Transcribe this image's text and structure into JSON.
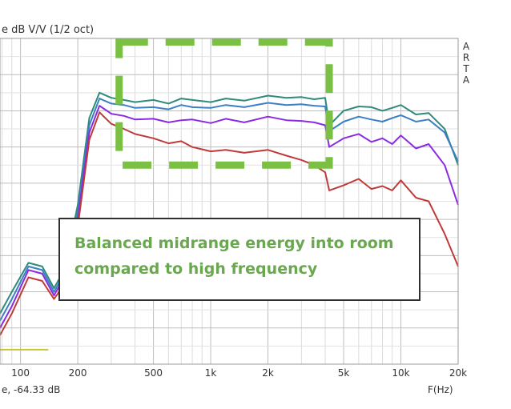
{
  "chart_data": {
    "type": "line",
    "title": "",
    "ylabel_fragment": "e dB V/V (1/2 oct)",
    "xlabel": "F(Hz)",
    "readout": "e, -64.33 dB",
    "watermark_letters": [
      "A",
      "R",
      "T",
      "A"
    ],
    "x_scale": "log",
    "xlim": [
      78,
      20000
    ],
    "x_ticks": [
      {
        "value": 100,
        "label": "100"
      },
      {
        "value": 200,
        "label": "200"
      },
      {
        "value": 500,
        "label": "500"
      },
      {
        "value": 1000,
        "label": "1k"
      },
      {
        "value": 2000,
        "label": "2k"
      },
      {
        "value": 5000,
        "label": "5k"
      },
      {
        "value": 10000,
        "label": "10k"
      },
      {
        "value": 20000,
        "label": "20k"
      }
    ],
    "ylim": [
      -45,
      0
    ],
    "y_major_step": 5,
    "grid": true,
    "colors": {
      "teal": "#2e8b7a",
      "blue": "#3b7fc4",
      "purple": "#8a2be2",
      "red": "#c03a3a",
      "annotation": "#6aa84f",
      "highlight": "#7ac143"
    },
    "series": [
      {
        "color": "teal",
        "points": [
          [
            78,
            -38
          ],
          [
            90,
            -35
          ],
          [
            110,
            -31
          ],
          [
            130,
            -31.5
          ],
          [
            150,
            -34.5
          ],
          [
            170,
            -32
          ],
          [
            200,
            -23
          ],
          [
            230,
            -11
          ],
          [
            260,
            -7.5
          ],
          [
            300,
            -8.2
          ],
          [
            350,
            -8.5
          ],
          [
            400,
            -8.8
          ],
          [
            500,
            -8.5
          ],
          [
            600,
            -9
          ],
          [
            700,
            -8.3
          ],
          [
            800,
            -8.5
          ],
          [
            1000,
            -8.8
          ],
          [
            1200,
            -8.3
          ],
          [
            1500,
            -8.6
          ],
          [
            2000,
            -7.9
          ],
          [
            2500,
            -8.2
          ],
          [
            3000,
            -8.1
          ],
          [
            3500,
            -8.4
          ],
          [
            4000,
            -8.2
          ],
          [
            4200,
            -12
          ],
          [
            5000,
            -10
          ],
          [
            6000,
            -9.4
          ],
          [
            7000,
            -9.5
          ],
          [
            8000,
            -10
          ],
          [
            9000,
            -9.6
          ],
          [
            10000,
            -9.2
          ],
          [
            12000,
            -10.5
          ],
          [
            14000,
            -10.3
          ],
          [
            17000,
            -12.5
          ],
          [
            20000,
            -17.5
          ]
        ]
      },
      {
        "color": "blue",
        "points": [
          [
            78,
            -39
          ],
          [
            90,
            -36
          ],
          [
            110,
            -31.5
          ],
          [
            130,
            -32
          ],
          [
            150,
            -35
          ],
          [
            170,
            -32.5
          ],
          [
            200,
            -24
          ],
          [
            230,
            -12
          ],
          [
            260,
            -8.3
          ],
          [
            300,
            -9
          ],
          [
            350,
            -9.2
          ],
          [
            400,
            -9.6
          ],
          [
            500,
            -9.5
          ],
          [
            600,
            -9.8
          ],
          [
            700,
            -9.2
          ],
          [
            800,
            -9.5
          ],
          [
            1000,
            -9.6
          ],
          [
            1200,
            -9.2
          ],
          [
            1500,
            -9.5
          ],
          [
            2000,
            -8.9
          ],
          [
            2500,
            -9.2
          ],
          [
            3000,
            -9.1
          ],
          [
            3500,
            -9.3
          ],
          [
            4000,
            -9.4
          ],
          [
            4200,
            -12.8
          ],
          [
            5000,
            -11.5
          ],
          [
            6000,
            -10.8
          ],
          [
            7000,
            -11.2
          ],
          [
            8000,
            -11.5
          ],
          [
            9000,
            -11
          ],
          [
            10000,
            -10.6
          ],
          [
            12000,
            -11.5
          ],
          [
            14000,
            -11.2
          ],
          [
            17000,
            -13
          ],
          [
            20000,
            -17
          ]
        ]
      },
      {
        "color": "purple",
        "points": [
          [
            78,
            -40
          ],
          [
            90,
            -37
          ],
          [
            110,
            -32
          ],
          [
            130,
            -32.5
          ],
          [
            150,
            -35.5
          ],
          [
            170,
            -33
          ],
          [
            200,
            -25
          ],
          [
            230,
            -13
          ],
          [
            260,
            -9.3
          ],
          [
            300,
            -10.4
          ],
          [
            350,
            -10.7
          ],
          [
            400,
            -11.2
          ],
          [
            500,
            -11.1
          ],
          [
            600,
            -11.6
          ],
          [
            700,
            -11.3
          ],
          [
            800,
            -11.2
          ],
          [
            1000,
            -11.7
          ],
          [
            1200,
            -11.1
          ],
          [
            1500,
            -11.6
          ],
          [
            2000,
            -10.8
          ],
          [
            2500,
            -11.3
          ],
          [
            3000,
            -11.4
          ],
          [
            3500,
            -11.6
          ],
          [
            4000,
            -12
          ],
          [
            4200,
            -15
          ],
          [
            5000,
            -13.8
          ],
          [
            6000,
            -13.2
          ],
          [
            7000,
            -14.3
          ],
          [
            8000,
            -13.8
          ],
          [
            9000,
            -14.6
          ],
          [
            10000,
            -13.4
          ],
          [
            12000,
            -15.2
          ],
          [
            14000,
            -14.6
          ],
          [
            17000,
            -17.5
          ],
          [
            20000,
            -23
          ]
        ]
      },
      {
        "color": "red",
        "points": [
          [
            78,
            -41
          ],
          [
            90,
            -38
          ],
          [
            110,
            -33
          ],
          [
            130,
            -33.5
          ],
          [
            150,
            -36
          ],
          [
            170,
            -34
          ],
          [
            200,
            -26
          ],
          [
            230,
            -14
          ],
          [
            260,
            -10.2
          ],
          [
            300,
            -11.8
          ],
          [
            350,
            -12.5
          ],
          [
            400,
            -13.2
          ],
          [
            500,
            -13.8
          ],
          [
            600,
            -14.5
          ],
          [
            700,
            -14.2
          ],
          [
            800,
            -15
          ],
          [
            1000,
            -15.6
          ],
          [
            1200,
            -15.4
          ],
          [
            1500,
            -15.8
          ],
          [
            2000,
            -15.4
          ],
          [
            2500,
            -16.2
          ],
          [
            3000,
            -16.8
          ],
          [
            3500,
            -17.5
          ],
          [
            4000,
            -18.5
          ],
          [
            4200,
            -21
          ],
          [
            5000,
            -20.3
          ],
          [
            6000,
            -19.4
          ],
          [
            7000,
            -20.8
          ],
          [
            8000,
            -20.4
          ],
          [
            9000,
            -21
          ],
          [
            10000,
            -19.6
          ],
          [
            12000,
            -22
          ],
          [
            14000,
            -22.5
          ],
          [
            17000,
            -27
          ],
          [
            20000,
            -31.5
          ]
        ]
      }
    ],
    "reference_line": {
      "color": "#c8c83a",
      "x": [
        78,
        140
      ],
      "y": -43
    }
  },
  "highlight_box": {
    "color": "highlight",
    "style": "dashed"
  },
  "annotation": {
    "lines": [
      "Balanced midrange energy into room",
      "compared to high frequency"
    ]
  }
}
